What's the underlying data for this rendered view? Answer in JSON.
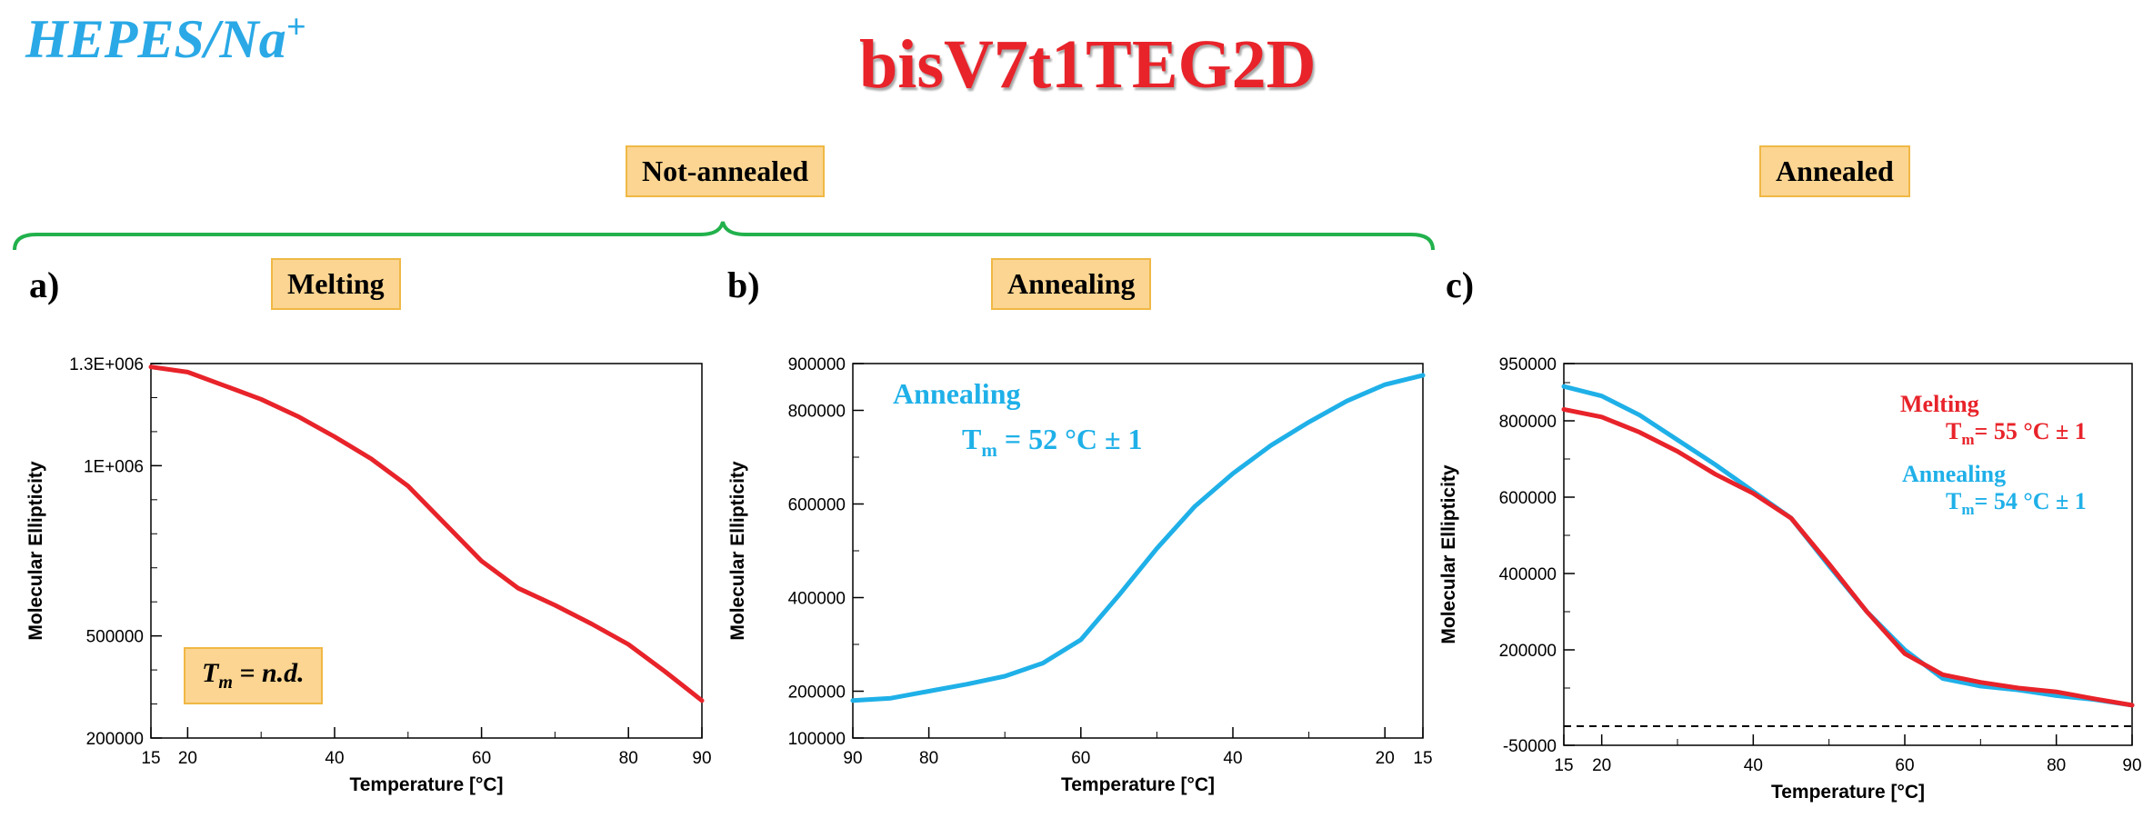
{
  "header": {
    "buffer": "HEPES/Na",
    "buffer_sup": "+",
    "title": "bisV7t1TEG2D",
    "not_annealed": "Not-annealed",
    "annealed": "Annealed"
  },
  "panels": {
    "a": {
      "letter": "a)",
      "box": "Melting",
      "tm_box_main": "T",
      "tm_box_sub": "m",
      "tm_box_rest": " = n.d."
    },
    "b": {
      "letter": "b)",
      "box": "Annealing"
    },
    "c": {
      "letter": "c)"
    }
  },
  "colors": {
    "red": "#e8232a",
    "blue": "#1fb0e8",
    "box_fill": "#fbd591",
    "brace": "#22b14c",
    "buffer": "#2aa9e6"
  },
  "chart_data": [
    {
      "id": "a",
      "type": "line",
      "xlabel": "Temperature [°C]",
      "ylabel": "Molecular Ellipticity",
      "xlim": [
        15,
        90
      ],
      "ylim": [
        200000,
        1300000
      ],
      "xticks": [
        15,
        20,
        40,
        60,
        80,
        90
      ],
      "yticks": [
        200000,
        500000,
        1000000,
        1300000
      ],
      "ytick_labels": [
        "200000",
        "500000",
        "1E+006",
        "1.3E+006"
      ],
      "series": [
        {
          "color": "#e8232a",
          "x": [
            15,
            20,
            25,
            30,
            35,
            40,
            45,
            50,
            55,
            60,
            65,
            70,
            75,
            80,
            85,
            90
          ],
          "y": [
            1290000,
            1275000,
            1235000,
            1195000,
            1145000,
            1085000,
            1020000,
            940000,
            830000,
            720000,
            640000,
            590000,
            535000,
            475000,
            395000,
            310000
          ]
        }
      ]
    },
    {
      "id": "b",
      "type": "line",
      "xlabel": "Temperature [°C]",
      "ylabel": "Molecular Ellipticity",
      "xlim": [
        90,
        15
      ],
      "ylim": [
        100000,
        900000
      ],
      "xticks": [
        90,
        80,
        60,
        40,
        20,
        15
      ],
      "yticks": [
        100000,
        200000,
        400000,
        600000,
        800000,
        900000
      ],
      "ytick_labels": [
        "100000",
        "200000",
        "400000",
        "600000",
        "800000",
        "900000"
      ],
      "annotation": {
        "name": "Annealing",
        "tm_main": "T",
        "tm_sub": "m",
        "tm_rest": "= 52 °C ± 1"
      },
      "series": [
        {
          "color": "#1fb0e8",
          "x": [
            90,
            85,
            80,
            75,
            70,
            65,
            60,
            55,
            50,
            45,
            40,
            35,
            30,
            25,
            20,
            15
          ],
          "y": [
            180000,
            185000,
            200000,
            215000,
            232000,
            260000,
            310000,
            405000,
            505000,
            595000,
            665000,
            725000,
            775000,
            820000,
            855000,
            875000
          ]
        }
      ]
    },
    {
      "id": "c",
      "type": "line",
      "xlabel": "Temperature [°C]",
      "ylabel": "Molecular Ellipticity",
      "xlim": [
        15,
        90
      ],
      "ylim": [
        -50000,
        950000
      ],
      "xticks": [
        15,
        20,
        40,
        60,
        80,
        90
      ],
      "yticks": [
        -50000,
        200000,
        400000,
        600000,
        800000,
        950000
      ],
      "ytick_labels": [
        "-50000",
        "200000",
        "400000",
        "600000",
        "800000",
        "950000"
      ],
      "baseline": 0,
      "annotations": [
        {
          "name": "Melting",
          "tm_main": "T",
          "tm_sub": "m",
          "tm_rest": "= 55 °C ± 1",
          "color": "#e8232a"
        },
        {
          "name": "Annealing",
          "tm_main": "T",
          "tm_sub": "m",
          "tm_rest": "= 54 °C ± 1",
          "color": "#1fb0e8"
        }
      ],
      "series": [
        {
          "color": "#1fb0e8",
          "x": [
            15,
            20,
            25,
            30,
            35,
            40,
            45,
            50,
            55,
            60,
            65,
            70,
            75,
            80,
            85,
            90
          ],
          "y": [
            890000,
            865000,
            815000,
            750000,
            685000,
            615000,
            545000,
            420000,
            300000,
            200000,
            125000,
            105000,
            95000,
            80000,
            70000,
            55000
          ]
        },
        {
          "color": "#e8232a",
          "x": [
            15,
            20,
            25,
            30,
            35,
            40,
            45,
            50,
            55,
            60,
            65,
            70,
            75,
            80,
            85,
            90
          ],
          "y": [
            830000,
            810000,
            770000,
            720000,
            660000,
            610000,
            545000,
            425000,
            300000,
            190000,
            135000,
            115000,
            100000,
            90000,
            72000,
            55000
          ]
        }
      ]
    }
  ]
}
